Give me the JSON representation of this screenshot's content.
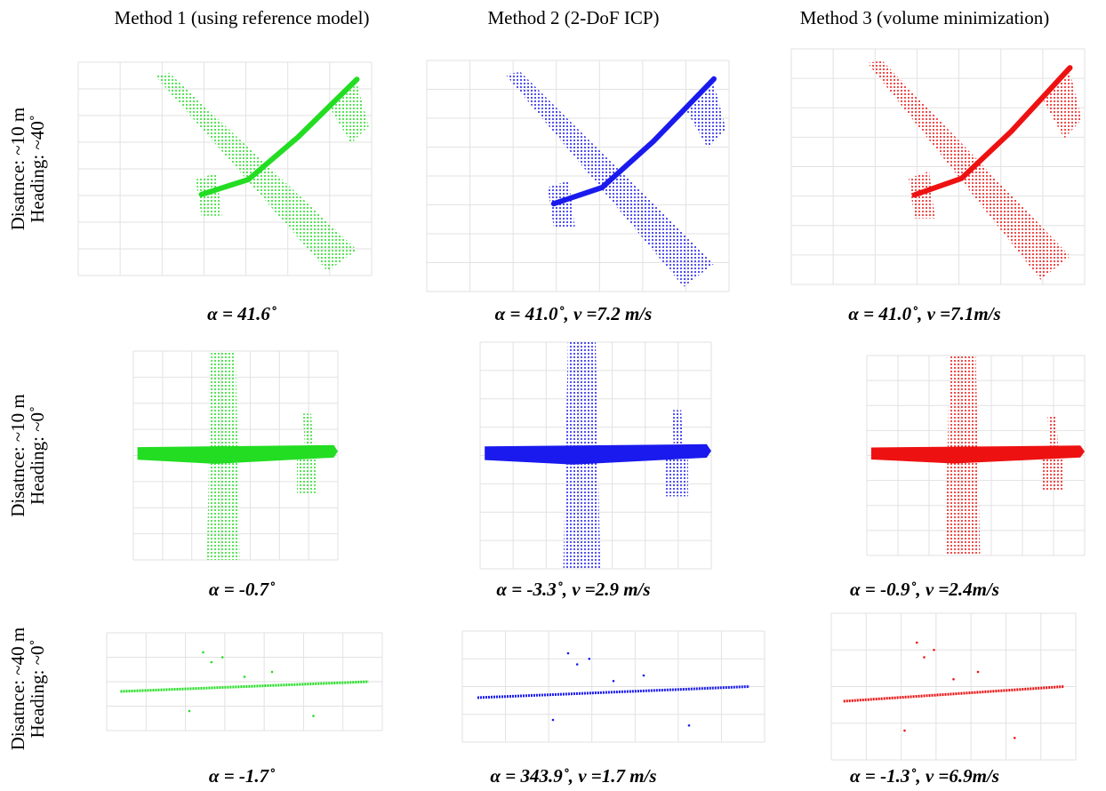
{
  "columns": [
    "Method 1 (using reference model)",
    "Method 2 (2-DoF ICP)",
    "Method 3 (volume minimization)"
  ],
  "rows": [
    {
      "label": [
        "Disatnce: ~10 m",
        "Heading: ~40˚"
      ],
      "captions": [
        "α = 41.6˚",
        "α = 41.0˚, v =7.2 m/s",
        "α = 41.0˚, v =7.1m/s"
      ]
    },
    {
      "label": [
        "Disatnce: ~10 m",
        "Heading: ~0˚"
      ],
      "captions": [
        "α = -0.7˚",
        "α = -3.3˚, v =2.9 m/s",
        "α = -0.9˚, v =2.4m/s"
      ]
    },
    {
      "label": [
        "Disatnce: ~40 m",
        "Heading: ~0˚"
      ],
      "captions": [
        "α = -1.7˚",
        "α = 343.9˚, v =1.7 m/s",
        "α = -1.3˚, v =6.9m/s"
      ]
    }
  ]
}
